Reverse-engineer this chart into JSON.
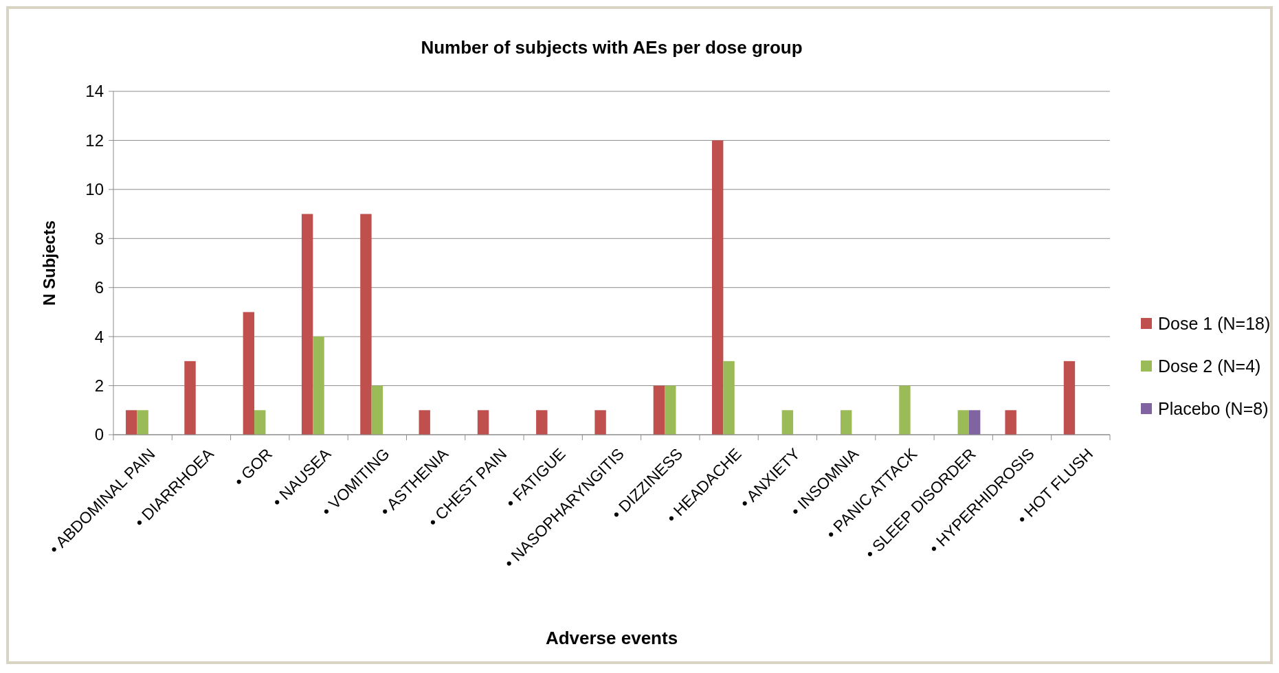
{
  "chart_data": {
    "type": "bar",
    "title": "Number of subjects with AEs per dose group",
    "xlabel": "Adverse events",
    "ylabel": "N Subjects",
    "categories": [
      "• ABDOMINAL PAIN",
      "• DIARRHOEA",
      "• GOR",
      "• NAUSEA",
      "• VOMITING",
      "• ASTHENIA",
      "• CHEST PAIN",
      "• FATIGUE",
      "• NASOPHARYNGITIS",
      "• DIZZINESS",
      "• HEADACHE",
      "• ANXIETY",
      "• INSOMNIA",
      "• PANIC ATTACK",
      "• SLEEP DISORDER",
      "• HYPERHIDROSIS",
      "• HOT FLUSH"
    ],
    "series": [
      {
        "name": "Dose 1 (N=18)",
        "color": "#c0504d",
        "values": [
          1,
          3,
          5,
          9,
          9,
          1,
          1,
          1,
          1,
          2,
          12,
          0,
          0,
          0,
          0,
          1,
          3
        ]
      },
      {
        "name": "Dose 2 (N=4)",
        "color": "#9bbb59",
        "values": [
          1,
          0,
          1,
          4,
          2,
          0,
          0,
          0,
          0,
          2,
          3,
          1,
          1,
          2,
          1,
          0,
          0
        ]
      },
      {
        "name": "Placebo (N=8)",
        "color": "#8064a2",
        "values": [
          0,
          0,
          0,
          0,
          0,
          0,
          0,
          0,
          0,
          0,
          0,
          0,
          0,
          0,
          1,
          0,
          0
        ]
      }
    ],
    "ylim": [
      0,
      14
    ],
    "yticks": [
      0,
      2,
      4,
      6,
      8,
      10,
      12,
      14
    ],
    "grid": "y",
    "legend": "right"
  }
}
